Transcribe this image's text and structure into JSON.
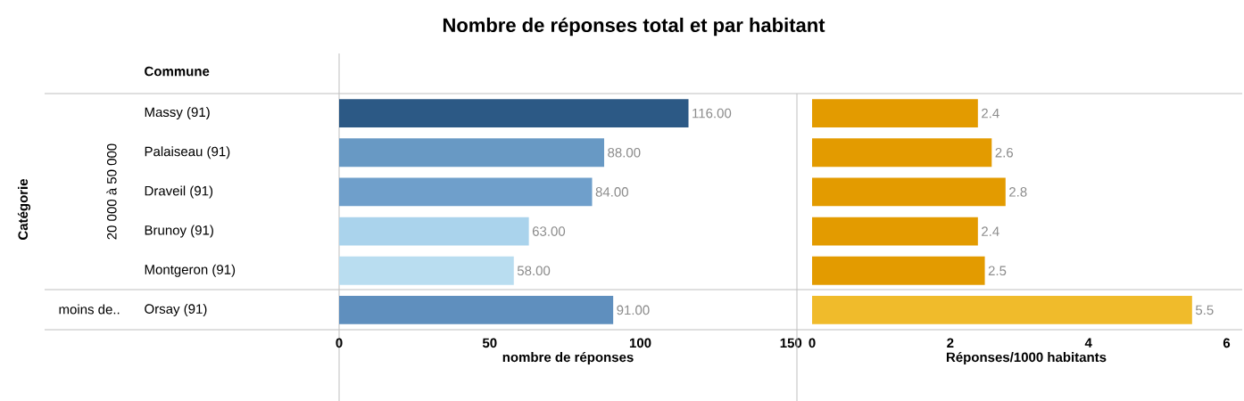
{
  "chart_data": [
    {
      "type": "bar",
      "orientation": "horizontal",
      "title": "Nombre de réponses total et par habitant",
      "xlabel": "nombre de réponses",
      "ylabel": "Catégorie",
      "categories": [
        "Massy (91)",
        "Palaiseau (91)",
        "Draveil (91)",
        "Brunoy (91)",
        "Montgeron (91)",
        "Orsay (91)"
      ],
      "values": [
        116,
        88,
        84,
        63,
        58,
        91
      ],
      "value_labels": [
        "116.00",
        "88.00",
        "84.00",
        "63.00",
        "58.00",
        "91.00"
      ],
      "colors": [
        "#2c5985",
        "#6899c4",
        "#6f9fcb",
        "#aad3ec",
        "#b9ddf0",
        "#5f8fbe"
      ],
      "xlim": [
        0,
        152
      ],
      "xticks": [
        0,
        50,
        100,
        150
      ],
      "annotations": [
        "Commune",
        "20 000 à 50 000",
        "moins de.."
      ]
    },
    {
      "type": "bar",
      "orientation": "horizontal",
      "xlabel": "Réponses/1000 habitants",
      "values": [
        2.4,
        2.6,
        2.8,
        2.4,
        2.5,
        5.5
      ],
      "data_labels": true,
      "colors": [
        "#e39b00",
        "#e39b00",
        "#e39b00",
        "#e39b00",
        "#e39b00",
        "#f0bb2b"
      ],
      "xlim": [
        0,
        6.2
      ],
      "xticks": [
        0,
        2,
        4,
        6
      ]
    }
  ]
}
